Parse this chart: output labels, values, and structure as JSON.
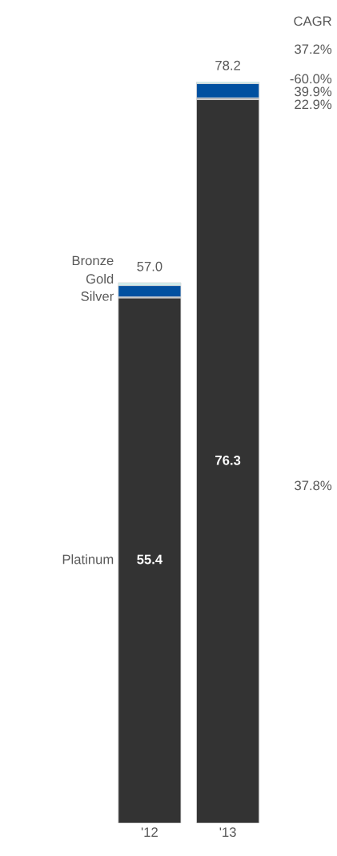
{
  "chart_data": {
    "type": "bar",
    "stacked": true,
    "categories": [
      "'12",
      "'13"
    ],
    "series": [
      {
        "name": "Platinum",
        "color": "#333333",
        "values": [
          55.4,
          76.3
        ],
        "value_labels": [
          "55.4",
          "76.3"
        ]
      },
      {
        "name": "Silver",
        "color": "#a6a6a6",
        "values": [
          0.1,
          0.2
        ]
      },
      {
        "name": "Gold",
        "color": "#0050a0",
        "values": [
          1.2,
          1.5
        ]
      },
      {
        "name": "Bronze",
        "color": "#cdeeee",
        "values": [
          0.3,
          0.2
        ]
      }
    ],
    "ylim": [
      0,
      78.2
    ],
    "tick_labels": "x",
    "legend": false,
    "grid": false,
    "totals": [
      "57.0",
      "78.2"
    ],
    "annotations": [
      "CAGR",
      "37.2%",
      "-60.0%",
      "39.9%",
      "22.9%",
      "37.8%"
    ]
  }
}
